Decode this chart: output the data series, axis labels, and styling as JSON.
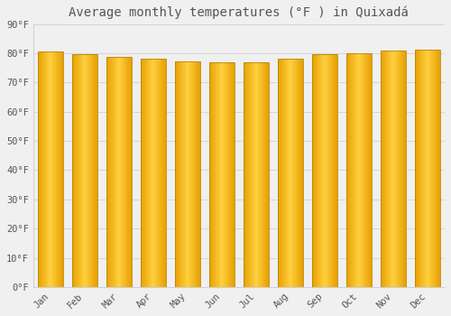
{
  "title": "Average monthly temperatures (°F ) in Quixadá",
  "months": [
    "Jan",
    "Feb",
    "Mar",
    "Apr",
    "May",
    "Jun",
    "Jul",
    "Aug",
    "Sep",
    "Oct",
    "Nov",
    "Dec"
  ],
  "temperatures": [
    80.6,
    79.7,
    78.8,
    78.1,
    77.4,
    77.0,
    77.0,
    78.3,
    79.7,
    80.1,
    81.0,
    81.3
  ],
  "bar_color_left": "#E8A000",
  "bar_color_center": "#FFD040",
  "bar_color_right": "#E8A000",
  "bar_edge_color": "#B8860B",
  "ylim": [
    0,
    90
  ],
  "yticks": [
    0,
    10,
    20,
    30,
    40,
    50,
    60,
    70,
    80,
    90
  ],
  "ytick_labels": [
    "0°F",
    "10°F",
    "20°F",
    "30°F",
    "40°F",
    "50°F",
    "60°F",
    "70°F",
    "80°F",
    "90°F"
  ],
  "background_color": "#f0f0f0",
  "grid_color": "#d0d0d0",
  "font_color": "#555555",
  "title_fontsize": 10,
  "tick_fontsize": 7.5,
  "bar_width": 0.75
}
